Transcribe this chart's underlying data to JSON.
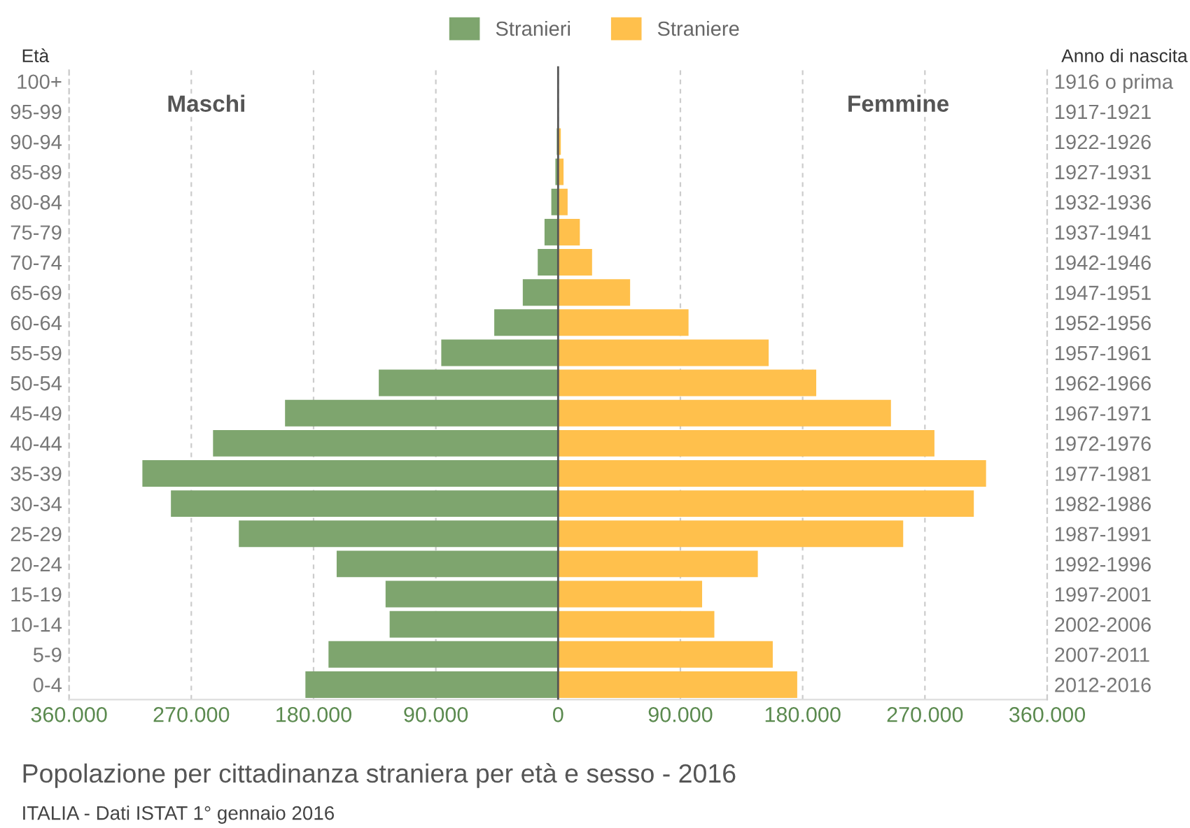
{
  "chart_data": {
    "type": "bar",
    "orientation": "horizontal",
    "title": "Popolazione per cittadinanza straniera per età e sesso - 2016",
    "ylabel": "Età",
    "y2label": "Anno di nascita",
    "categories": [
      "100+",
      "95-99",
      "90-94",
      "85-89",
      "80-84",
      "75-79",
      "70-74",
      "65-69",
      "60-64",
      "55-59",
      "50-54",
      "45-49",
      "40-44",
      "35-39",
      "30-34",
      "25-29",
      "20-24",
      "15-19",
      "10-14",
      "5-9",
      "0-4"
    ],
    "y2_categories": [
      "1916 o prima",
      "1917-1921",
      "1922-1926",
      "1927-1931",
      "1932-1936",
      "1937-1941",
      "1942-1946",
      "1947-1951",
      "1952-1956",
      "1957-1961",
      "1962-1966",
      "1967-1971",
      "1972-1976",
      "1977-1981",
      "1982-1986",
      "1987-1991",
      "1992-1996",
      "1997-2001",
      "2002-2006",
      "2007-2011",
      "2012-2016"
    ],
    "series": [
      {
        "name": "Stranieri",
        "color": "#7ea56e",
        "values": [
          0,
          0,
          -1000,
          -2000,
          -5000,
          -10000,
          -15000,
          -26000,
          -47000,
          -86000,
          -132000,
          -201000,
          -254000,
          -306000,
          -285000,
          -235000,
          -163000,
          -127000,
          -124000,
          -169000,
          -186000
        ]
      },
      {
        "name": "Straniere",
        "color": "#ffc04c",
        "values": [
          0,
          0,
          2000,
          4000,
          7000,
          16000,
          25000,
          53000,
          96000,
          155000,
          190000,
          245000,
          277000,
          315000,
          306000,
          254000,
          147000,
          106000,
          115000,
          158000,
          176000
        ]
      }
    ],
    "xlim": [
      -360000,
      360000
    ],
    "xticks": [
      {
        "value": -360000,
        "label": "360.000"
      },
      {
        "value": -270000,
        "label": "270.000"
      },
      {
        "value": -180000,
        "label": "180.000"
      },
      {
        "value": -90000,
        "label": "90.000"
      },
      0,
      {
        "value": 90000,
        "label": "90.000"
      },
      {
        "value": 180000,
        "label": "180.000"
      },
      {
        "value": 270000,
        "label": "270.000"
      },
      {
        "value": 360000,
        "label": "360.000"
      }
    ],
    "grid": "x",
    "legend": "top",
    "stacked": true,
    "annotations": [
      "Maschi",
      "Femmine",
      "ITALIA - Dati ISTAT 1° gennaio 2016"
    ]
  }
}
